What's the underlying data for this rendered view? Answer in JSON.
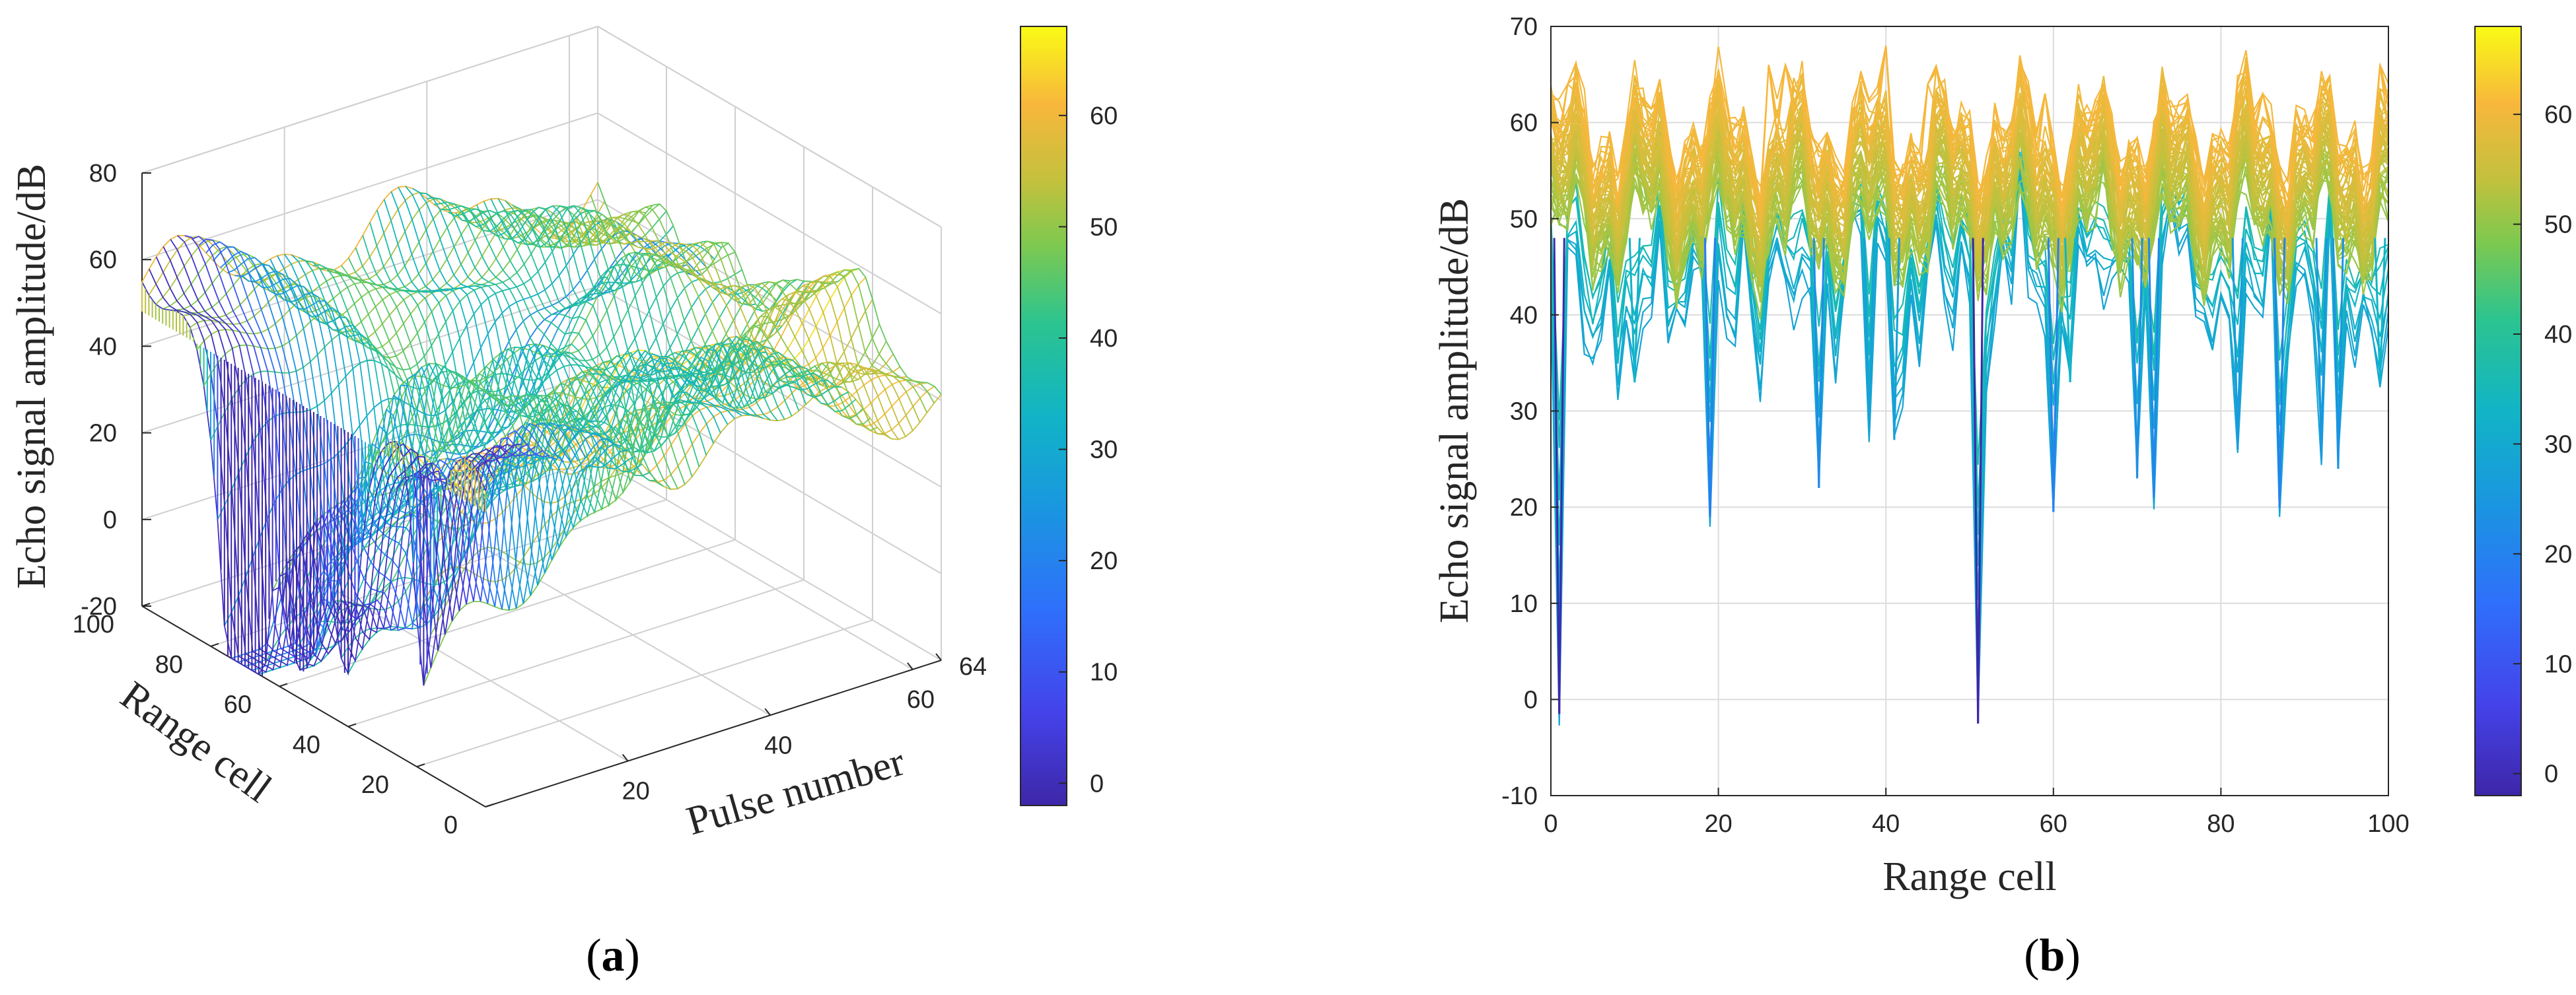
{
  "chart_data": [
    {
      "id": "a",
      "type": "surface3d",
      "caption_letter": "a",
      "zlabel": "Echo signal amplitude/dB",
      "xlabel": "Pulse number",
      "ylabel": "Range cell",
      "x_ticks": [
        "20",
        "40",
        "60",
        "64"
      ],
      "y_ticks": [
        "0",
        "20",
        "40",
        "60",
        "80",
        "100"
      ],
      "z_ticks": [
        "-20",
        "0",
        "20",
        "40",
        "60",
        "80"
      ],
      "xlim": [
        1,
        64
      ],
      "ylim": [
        0,
        100
      ],
      "zlim": [
        -20,
        80
      ],
      "colorbar": {
        "ticks": [
          "0",
          "10",
          "20",
          "30",
          "40",
          "50",
          "60"
        ],
        "range": [
          -2,
          68
        ]
      },
      "description_values": {
        "typical_level_db": [
          48,
          62
        ],
        "deep_nulls": [
          {
            "range_cell": 52,
            "amplitude_db": -2
          },
          {
            "range_cell": 0,
            "amplitude_db": -1
          }
        ]
      }
    },
    {
      "id": "b",
      "type": "line",
      "caption_letter": "b",
      "xlabel": "Range cell",
      "ylabel": "Echo signal amplitude/dB",
      "x_ticks": [
        "0",
        "20",
        "40",
        "60",
        "80",
        "100"
      ],
      "y_ticks": [
        "-10",
        "0",
        "10",
        "20",
        "30",
        "40",
        "50",
        "60",
        "70"
      ],
      "xlim": [
        0,
        100
      ],
      "ylim": [
        -10,
        70
      ],
      "grid": true,
      "colorbar": {
        "ticks": [
          "0",
          "10",
          "20",
          "30",
          "40",
          "50",
          "60"
        ],
        "range": [
          -2,
          68
        ]
      },
      "series_count": 64,
      "min_points": [
        {
          "x": 1,
          "y": -1.5
        },
        {
          "x": 10,
          "y": 33
        },
        {
          "x": 19,
          "y": 19
        },
        {
          "x": 32,
          "y": 22
        },
        {
          "x": 38,
          "y": 28
        },
        {
          "x": 41,
          "y": 27
        },
        {
          "x": 51,
          "y": -2.5
        },
        {
          "x": 60,
          "y": 19.5
        },
        {
          "x": 62,
          "y": 33
        },
        {
          "x": 70,
          "y": 23
        },
        {
          "x": 72,
          "y": 21
        },
        {
          "x": 82,
          "y": 26
        },
        {
          "x": 87,
          "y": 20
        },
        {
          "x": 92,
          "y": 25
        },
        {
          "x": 94,
          "y": 24
        },
        {
          "x": 99,
          "y": 33
        }
      ],
      "max_points": [
        {
          "x": 2,
          "y": 64
        },
        {
          "x": 13,
          "y": 64.5
        },
        {
          "x": 26,
          "y": 66
        },
        {
          "x": 28,
          "y": 66
        },
        {
          "x": 40,
          "y": 68
        },
        {
          "x": 45,
          "y": 64
        },
        {
          "x": 59,
          "y": 63
        },
        {
          "x": 66,
          "y": 64
        },
        {
          "x": 73,
          "y": 63
        },
        {
          "x": 85,
          "y": 63
        },
        {
          "x": 99,
          "y": 66
        }
      ]
    }
  ]
}
